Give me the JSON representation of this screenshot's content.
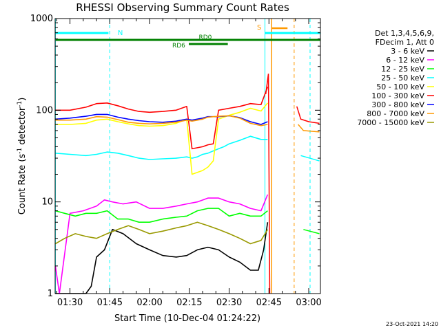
{
  "chart_data": {
    "type": "line",
    "title": "RHESSI Observing Summary Count Rates",
    "xlabel": "Start Time (10-Dec-04 01:24:22)",
    "ylabel_main": "Count Rate (s",
    "ylabel_sup1": "-1",
    "ylabel_mid": " detector",
    "ylabel_sup2": "-1",
    "ylabel_end": ")",
    "yscale": "log",
    "ylim": [
      1,
      1000
    ],
    "xlim_minutes": [
      84.4,
      184.4
    ],
    "x_ticks": [
      {
        "minute": 90,
        "label": "01:30"
      },
      {
        "minute": 105,
        "label": "01:45"
      },
      {
        "minute": 120,
        "label": "02:00"
      },
      {
        "minute": 135,
        "label": "02:15"
      },
      {
        "minute": 150,
        "label": "02:30"
      },
      {
        "minute": 165,
        "label": "02:45"
      },
      {
        "minute": 180,
        "label": "03:00"
      }
    ],
    "y_ticks": [
      {
        "value": 1,
        "label": "1"
      },
      {
        "value": 10,
        "label": "10"
      },
      {
        "value": 100,
        "label": "100"
      },
      {
        "value": 1000,
        "label": "1000"
      }
    ],
    "legend_header": [
      "Det 1,3,4,5,6,9,",
      "FDecim 1, Att 0"
    ],
    "legend_placement": "right",
    "timestamp": "23-Oct-2021 14:20",
    "annotations": {
      "night_label": "N",
      "saa_label": "S",
      "rd0_label": "RD0",
      "rd6_label": "RD6"
    },
    "series": [
      {
        "name": "3 - 6 keV",
        "color": "#000000",
        "points": [
          [
            84.5,
            1
          ],
          [
            96,
            1
          ],
          [
            98,
            1.2
          ],
          [
            100,
            2.5
          ],
          [
            103,
            3
          ],
          [
            106,
            5
          ],
          [
            110,
            4.5
          ],
          [
            115,
            3.5
          ],
          [
            120,
            3
          ],
          [
            125,
            2.6
          ],
          [
            130,
            2.5
          ],
          [
            134,
            2.6
          ],
          [
            138,
            3
          ],
          [
            142,
            3.2
          ],
          [
            146,
            3
          ],
          [
            150,
            2.5
          ],
          [
            154,
            2.2
          ],
          [
            158,
            1.8
          ],
          [
            161,
            1.8
          ],
          [
            163,
            3
          ],
          [
            164.5,
            6
          ]
        ]
      },
      {
        "name": "6 - 12 keV",
        "color": "#ff00ff",
        "points": [
          [
            84.5,
            2
          ],
          [
            86,
            1
          ],
          [
            90,
            7.5
          ],
          [
            95,
            8
          ],
          [
            100,
            9
          ],
          [
            103,
            10.5
          ],
          [
            106,
            10
          ],
          [
            110,
            9.5
          ],
          [
            115,
            10
          ],
          [
            120,
            8.5
          ],
          [
            125,
            8.5
          ],
          [
            130,
            9
          ],
          [
            134,
            9.5
          ],
          [
            138,
            10
          ],
          [
            142,
            11
          ],
          [
            146,
            11
          ],
          [
            150,
            10
          ],
          [
            154,
            9.5
          ],
          [
            158,
            8.5
          ],
          [
            162,
            8
          ],
          [
            164.5,
            12
          ]
        ]
      },
      {
        "name": "12 - 25 keV",
        "color": "#00ff00",
        "points": [
          [
            84.5,
            8
          ],
          [
            88,
            7.5
          ],
          [
            92,
            7
          ],
          [
            96,
            7.5
          ],
          [
            100,
            7.5
          ],
          [
            104,
            8
          ],
          [
            108,
            6.5
          ],
          [
            112,
            6.5
          ],
          [
            116,
            6
          ],
          [
            120,
            6
          ],
          [
            125,
            6.5
          ],
          [
            130,
            6.8
          ],
          [
            134,
            7
          ],
          [
            138,
            8
          ],
          [
            142,
            8.5
          ],
          [
            146,
            8.5
          ],
          [
            150,
            7
          ],
          [
            154,
            7.5
          ],
          [
            158,
            7
          ],
          [
            162,
            7
          ],
          [
            164.5,
            8
          ]
        ]
      },
      {
        "name": "25 - 50 keV",
        "color": "#00ffff",
        "points": [
          [
            84.5,
            34
          ],
          [
            90,
            33
          ],
          [
            96,
            32
          ],
          [
            100,
            33
          ],
          [
            104,
            35
          ],
          [
            108,
            34
          ],
          [
            112,
            32
          ],
          [
            116,
            30
          ],
          [
            120,
            29
          ],
          [
            125,
            29.5
          ],
          [
            130,
            30
          ],
          [
            134,
            31
          ],
          [
            136,
            30
          ],
          [
            138,
            31
          ],
          [
            140,
            33
          ],
          [
            142,
            34
          ],
          [
            144,
            36
          ],
          [
            146,
            38
          ],
          [
            148,
            40
          ],
          [
            150,
            43
          ],
          [
            154,
            47
          ],
          [
            158,
            52
          ],
          [
            162,
            48
          ],
          [
            164.5,
            48
          ]
        ]
      },
      {
        "name": "50 - 100 keV",
        "color": "#ffff00",
        "points": [
          [
            84.5,
            70
          ],
          [
            90,
            70
          ],
          [
            96,
            72
          ],
          [
            100,
            78
          ],
          [
            104,
            80
          ],
          [
            108,
            75
          ],
          [
            112,
            71
          ],
          [
            116,
            68
          ],
          [
            120,
            67
          ],
          [
            125,
            68
          ],
          [
            130,
            72
          ],
          [
            134,
            80
          ],
          [
            136,
            20
          ],
          [
            140,
            22
          ],
          [
            142,
            24
          ],
          [
            144,
            28
          ],
          [
            146,
            80
          ],
          [
            150,
            88
          ],
          [
            154,
            95
          ],
          [
            158,
            105
          ],
          [
            162,
            98
          ],
          [
            164.5,
            120
          ]
        ]
      },
      {
        "name": "100 - 300 keV",
        "color": "#ff0000",
        "points": [
          [
            84.5,
            100
          ],
          [
            90,
            100
          ],
          [
            96,
            108
          ],
          [
            100,
            118
          ],
          [
            104,
            120
          ],
          [
            108,
            112
          ],
          [
            112,
            103
          ],
          [
            116,
            97
          ],
          [
            120,
            95
          ],
          [
            125,
            97
          ],
          [
            130,
            100
          ],
          [
            134,
            110
          ],
          [
            136,
            38
          ],
          [
            140,
            40
          ],
          [
            142,
            42
          ],
          [
            144,
            43
          ],
          [
            146,
            100
          ],
          [
            150,
            105
          ],
          [
            154,
            110
          ],
          [
            158,
            118
          ],
          [
            162,
            115
          ],
          [
            164.5,
            180
          ]
        ]
      },
      {
        "name": "300 - 800 keV",
        "color": "#0000ff",
        "points": [
          [
            84.5,
            80
          ],
          [
            90,
            82
          ],
          [
            96,
            86
          ],
          [
            100,
            90
          ],
          [
            104,
            90
          ],
          [
            108,
            84
          ],
          [
            112,
            80
          ],
          [
            116,
            77
          ],
          [
            120,
            75
          ],
          [
            125,
            74
          ],
          [
            130,
            76
          ],
          [
            134,
            80
          ],
          [
            136,
            78
          ],
          [
            140,
            82
          ],
          [
            142,
            85
          ],
          [
            146,
            85
          ],
          [
            150,
            87
          ],
          [
            154,
            83
          ],
          [
            158,
            75
          ],
          [
            162,
            70
          ],
          [
            164.5,
            75
          ]
        ]
      },
      {
        "name": "800 - 7000 keV",
        "color": "#ff9900",
        "points": [
          [
            84.5,
            78
          ],
          [
            90,
            78
          ],
          [
            96,
            80
          ],
          [
            100,
            85
          ],
          [
            104,
            84
          ],
          [
            108,
            79
          ],
          [
            112,
            74
          ],
          [
            116,
            72
          ],
          [
            120,
            71
          ],
          [
            125,
            72
          ],
          [
            130,
            74
          ],
          [
            134,
            78
          ],
          [
            136,
            76
          ],
          [
            140,
            80
          ],
          [
            142,
            84
          ],
          [
            146,
            86
          ],
          [
            150,
            87
          ],
          [
            154,
            82
          ],
          [
            158,
            72
          ],
          [
            162,
            68
          ],
          [
            164.5,
            70
          ]
        ]
      },
      {
        "name": "7000 - 15000 keV",
        "color": "#999900",
        "points": [
          [
            84.5,
            3.5
          ],
          [
            88,
            4
          ],
          [
            92,
            4.5
          ],
          [
            96,
            4.2
          ],
          [
            100,
            4
          ],
          [
            104,
            4.5
          ],
          [
            108,
            5
          ],
          [
            112,
            5.5
          ],
          [
            116,
            5
          ],
          [
            120,
            4.5
          ],
          [
            125,
            4.8
          ],
          [
            130,
            5.2
          ],
          [
            134,
            5.5
          ],
          [
            138,
            6
          ],
          [
            142,
            5.5
          ],
          [
            146,
            5
          ],
          [
            150,
            4.5
          ],
          [
            154,
            4
          ],
          [
            158,
            3.5
          ],
          [
            162,
            3.8
          ],
          [
            164.5,
            5
          ]
        ]
      }
    ]
  }
}
